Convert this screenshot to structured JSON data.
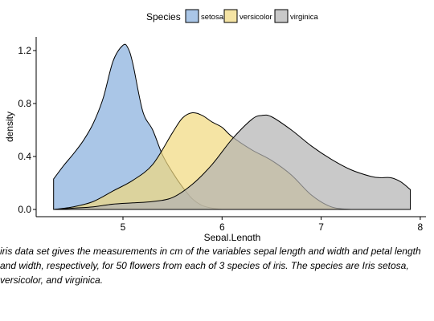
{
  "chart_data": {
    "type": "area",
    "subtype": "density",
    "title": "",
    "xlabel": "Sepal.Length",
    "ylabel": "density",
    "xlim": [
      4.3,
      7.9
    ],
    "ylim": [
      0,
      1.25
    ],
    "x_ticks": [
      5,
      6,
      7,
      8
    ],
    "y_ticks": [
      0.0,
      0.4,
      0.8,
      1.2
    ],
    "y_tick_labels": [
      "0.0",
      "0.4",
      "0.8",
      "1.2"
    ],
    "grid": false,
    "legend": {
      "title": "Species",
      "position": "top"
    },
    "series": [
      {
        "name": "setosa",
        "color": "#86AEDD",
        "x": [
          4.3,
          4.4,
          4.5,
          4.6,
          4.7,
          4.8,
          4.9,
          5.0,
          5.05,
          5.1,
          5.2,
          5.3,
          5.4,
          5.5,
          5.6,
          5.7,
          5.8,
          5.9,
          6.0
        ],
        "y": [
          0.23,
          0.33,
          0.42,
          0.52,
          0.65,
          0.84,
          1.12,
          1.24,
          1.22,
          1.1,
          0.74,
          0.6,
          0.41,
          0.28,
          0.17,
          0.08,
          0.03,
          0.01,
          0.0
        ]
      },
      {
        "name": "versicolor",
        "color": "#F1D97E",
        "x": [
          4.3,
          4.5,
          4.7,
          4.9,
          5.1,
          5.3,
          5.5,
          5.6,
          5.7,
          5.8,
          5.9,
          6.0,
          6.1,
          6.3,
          6.5,
          6.7,
          6.9,
          7.1,
          7.3
        ],
        "y": [
          0.0,
          0.02,
          0.06,
          0.14,
          0.22,
          0.34,
          0.58,
          0.69,
          0.73,
          0.71,
          0.66,
          0.62,
          0.55,
          0.45,
          0.37,
          0.26,
          0.11,
          0.02,
          0.0
        ]
      },
      {
        "name": "virginica",
        "color": "#B2B2B2",
        "x": [
          4.3,
          4.5,
          4.7,
          4.9,
          5.1,
          5.3,
          5.5,
          5.7,
          5.9,
          6.1,
          6.3,
          6.4,
          6.5,
          6.7,
          6.9,
          7.1,
          7.3,
          7.5,
          7.6,
          7.7,
          7.8,
          7.9
        ],
        "y": [
          0.0,
          0.01,
          0.02,
          0.04,
          0.05,
          0.06,
          0.09,
          0.19,
          0.34,
          0.53,
          0.68,
          0.71,
          0.7,
          0.6,
          0.48,
          0.38,
          0.3,
          0.25,
          0.24,
          0.24,
          0.21,
          0.15
        ]
      }
    ]
  },
  "caption_lines": [
    "iris data set gives the measurements in cm of the variables sepal length and width and petal length",
    "and width, respectively, for 50 flowers from each of 3 species of iris. The species are Iris setosa,",
    "versicolor, and virginica."
  ]
}
